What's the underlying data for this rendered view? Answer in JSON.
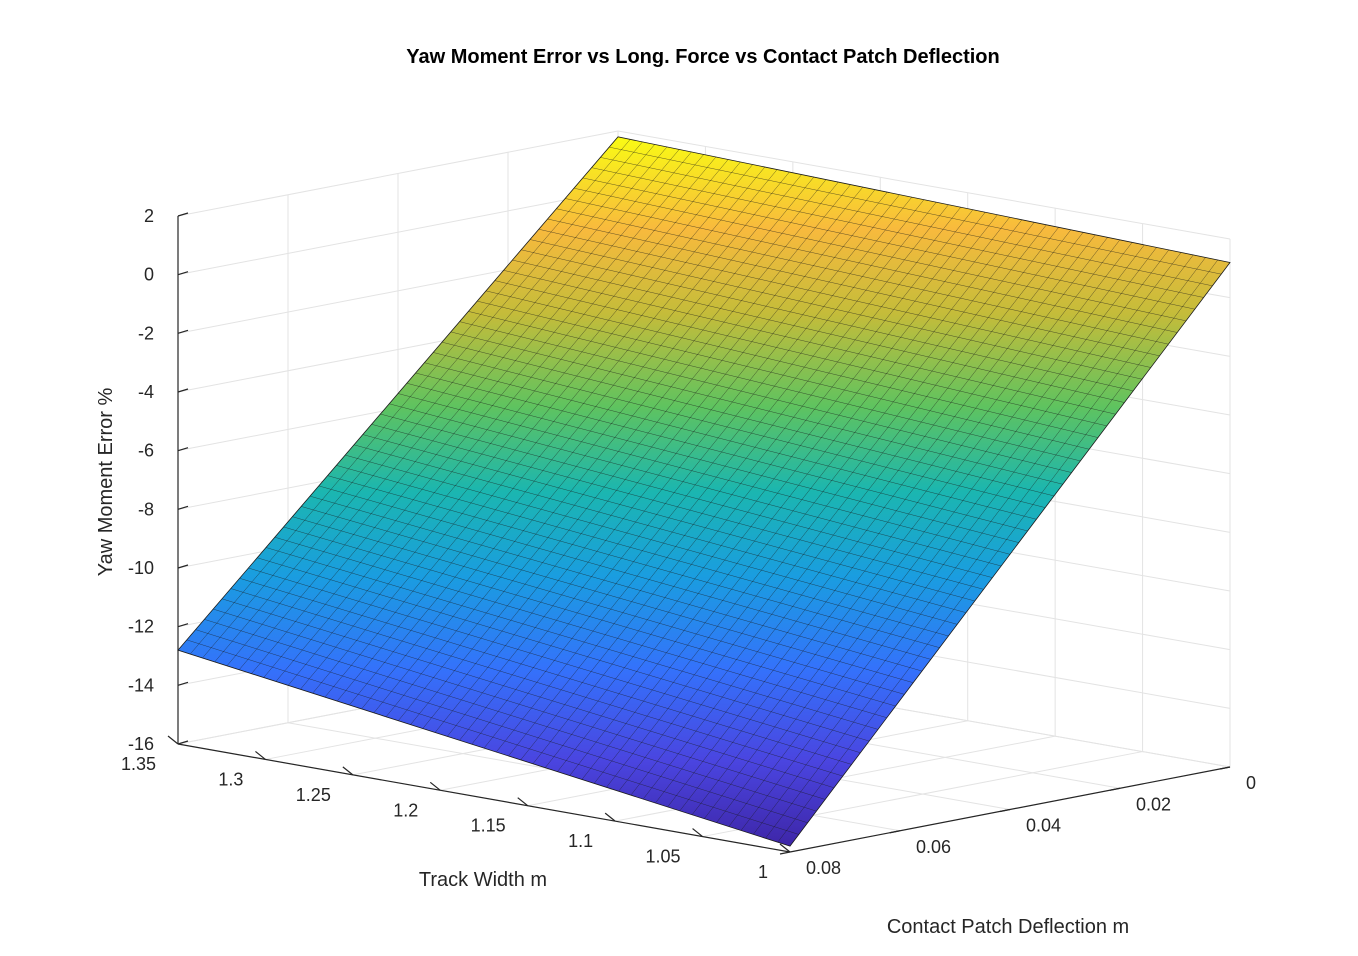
{
  "chart_data": {
    "type": "surface",
    "title": "Yaw Moment Error vs Long. Force vs Contact Patch Deflection",
    "xlabel": "Track Width m",
    "ylabel": "Contact Patch Deflection m",
    "zlabel": "Yaw Moment Error %",
    "x_range": [
      1,
      1.35
    ],
    "y_range": [
      0,
      0.08
    ],
    "z_range": [
      -16,
      2
    ],
    "x_ticks": [
      "1",
      "1.05",
      "1.1",
      "1.15",
      "1.2",
      "1.25",
      "1.3",
      "1.35"
    ],
    "y_ticks": [
      "0",
      "0.02",
      "0.04",
      "0.06",
      "0.08"
    ],
    "z_ticks": [
      "2",
      "0",
      "-2",
      "-4",
      "-6",
      "-8",
      "-10",
      "-12",
      "-14",
      "-16"
    ],
    "colormap": "parula",
    "grid": true,
    "corners": [
      {
        "x": 1.0,
        "y": 0.08,
        "z": -15.8
      },
      {
        "x": 1.35,
        "y": 0.08,
        "z": -12.8
      },
      {
        "x": 1.0,
        "y": 0.0,
        "z": 1.2
      },
      {
        "x": 1.35,
        "y": 0.0,
        "z": 1.8
      }
    ]
  }
}
